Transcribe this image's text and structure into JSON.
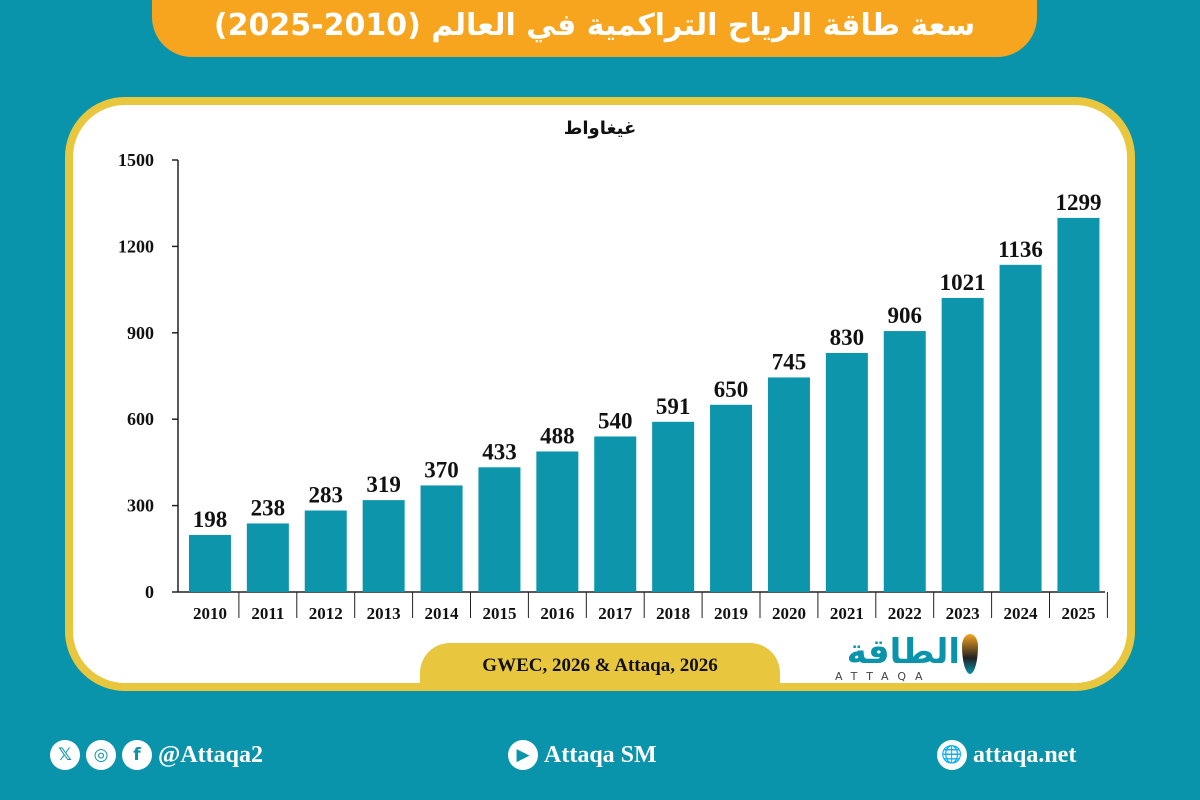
{
  "header": {
    "title": "سعة طاقة الرياح التراكمية في العالم (2010-2025)"
  },
  "chart_data": {
    "type": "bar",
    "title": "سعة طاقة الرياح التراكمية في العالم (2010-2025)",
    "ylabel": "غيغاواط",
    "xlabel": "",
    "categories": [
      "2010",
      "2011",
      "2012",
      "2013",
      "2014",
      "2015",
      "2016",
      "2017",
      "2018",
      "2019",
      "2020",
      "2021",
      "2022",
      "2023",
      "2024",
      "2025"
    ],
    "values": [
      198,
      238,
      283,
      319,
      370,
      433,
      488,
      540,
      591,
      650,
      745,
      830,
      906,
      1021,
      1136,
      1299
    ],
    "ylim": [
      0,
      1500
    ],
    "yticks": [
      0,
      300,
      600,
      900,
      1200,
      1500
    ],
    "grid": false,
    "bar_color": "#0d95ac"
  },
  "source": "GWEC, 2026 & Attaqa, 2026",
  "logo": {
    "arabic": "الطاقة",
    "latin": "ATTAQA"
  },
  "footer": {
    "social_handle": "@Attaqa2",
    "youtube": "Attaqa SM",
    "website": "attaqa.net",
    "icons": [
      "x-icon",
      "instagram-icon",
      "facebook-icon",
      "youtube-icon",
      "globe-icon"
    ]
  },
  "colors": {
    "background": "#0a94ab",
    "title_bar": "#f7a51f",
    "frame": "#e8c73f"
  }
}
